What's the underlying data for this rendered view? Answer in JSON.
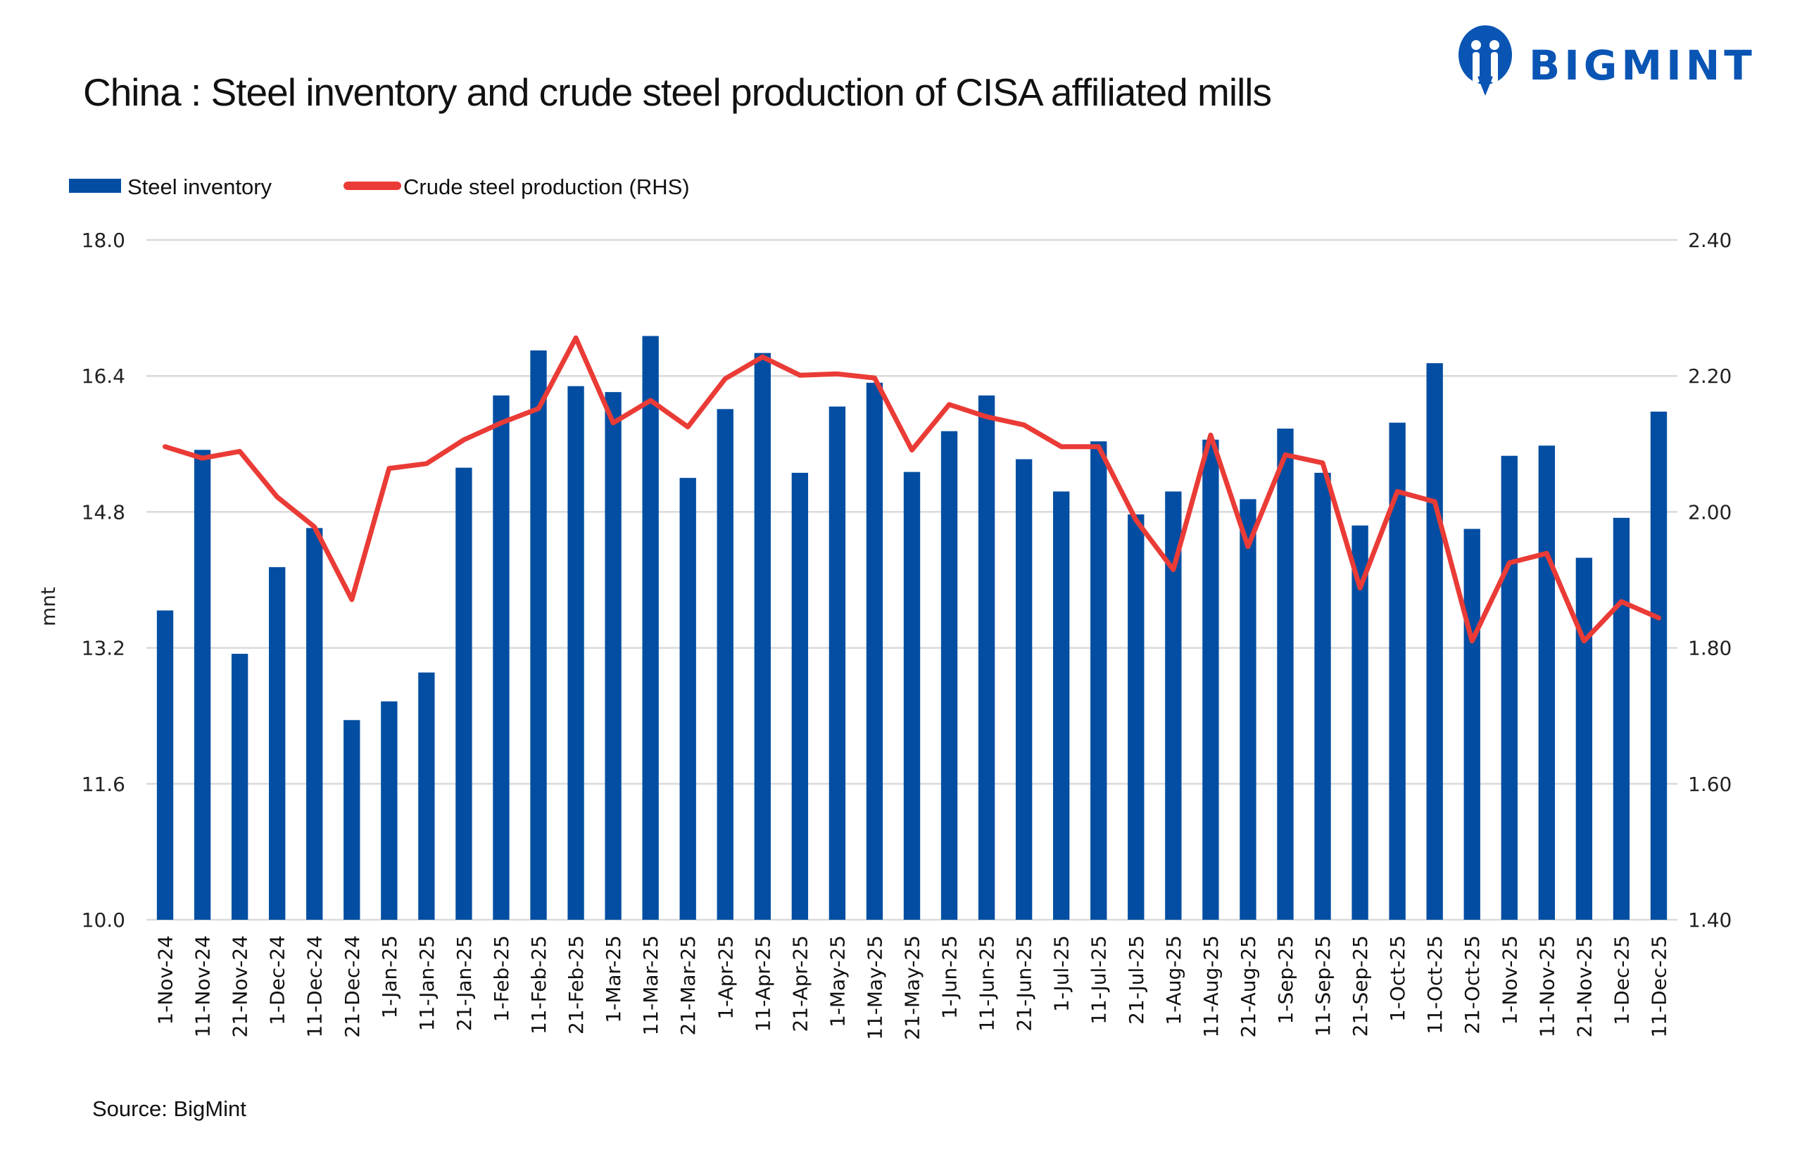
{
  "chart_data": {
    "type": "bar+line",
    "title": "China : Steel inventory and crude steel production of CISA affiliated mills",
    "ylabel": "mnt",
    "ylim": [
      10.0,
      18.0
    ],
    "y_ticks": [
      "10.0",
      "11.6",
      "13.2",
      "14.8",
      "16.4",
      "18.0"
    ],
    "y2lim": [
      1.4,
      2.4
    ],
    "y2_ticks": [
      "1.40",
      "1.60",
      "1.80",
      "2.00",
      "2.20",
      "2.40"
    ],
    "grid": true,
    "legend_position": "top-left",
    "categories": [
      "1-Nov-24",
      "11-Nov-24",
      "21-Nov-24",
      "1-Dec-24",
      "11-Dec-24",
      "21-Dec-24",
      "1-Jan-25",
      "11-Jan-25",
      "21-Jan-25",
      "1-Feb-25",
      "11-Feb-25",
      "21-Feb-25",
      "1-Mar-25",
      "11-Mar-25",
      "21-Mar-25",
      "1-Apr-25",
      "11-Apr-25",
      "21-Apr-25",
      "1-May-25",
      "11-May-25",
      "21-May-25",
      "1-Jun-25",
      "11-Jun-25",
      "21-Jun-25",
      "1-Jul-25",
      "11-Jul-25",
      "21-Jul-25",
      "1-Aug-25",
      "11-Aug-25",
      "21-Aug-25",
      "1-Sep-25",
      "11-Sep-25",
      "21-Sep-25",
      "1-Oct-25",
      "11-Oct-25",
      "21-Oct-25",
      "1-Nov-25",
      "11-Nov-25",
      "21-Nov-25",
      "1-Dec-25",
      "11-Dec-25"
    ],
    "series": [
      {
        "name": "Steel inventory",
        "type": "bar",
        "axis": "left",
        "color": "#034ea2",
        "values": [
          13.64,
          15.53,
          13.13,
          14.15,
          14.61,
          12.35,
          12.57,
          12.91,
          15.32,
          16.17,
          16.7,
          16.28,
          16.21,
          16.87,
          15.2,
          16.01,
          16.67,
          15.26,
          16.04,
          16.32,
          15.27,
          15.75,
          16.17,
          15.42,
          15.04,
          15.63,
          14.77,
          15.04,
          15.65,
          14.95,
          15.78,
          15.26,
          14.64,
          15.85,
          16.55,
          14.6,
          15.46,
          15.58,
          14.26,
          14.73,
          15.98
        ]
      },
      {
        "name": "Crude steel production (RHS)",
        "type": "line",
        "axis": "right",
        "color": "#ea3b36",
        "values": [
          2.096,
          2.079,
          2.089,
          2.022,
          1.978,
          1.871,
          2.064,
          2.071,
          2.106,
          2.131,
          2.152,
          2.256,
          2.131,
          2.164,
          2.125,
          2.196,
          2.228,
          2.201,
          2.203,
          2.197,
          2.091,
          2.158,
          2.14,
          2.128,
          2.096,
          2.096,
          1.988,
          1.915,
          2.113,
          1.949,
          2.084,
          2.072,
          1.888,
          2.03,
          2.015,
          1.81,
          1.925,
          1.939,
          1.81,
          1.868,
          1.844
        ]
      }
    ],
    "source": "Source: BigMint"
  },
  "brand": {
    "name": "BIGMINT",
    "color": "#0a55b4",
    "icon": "bigmint-logo-icon"
  }
}
